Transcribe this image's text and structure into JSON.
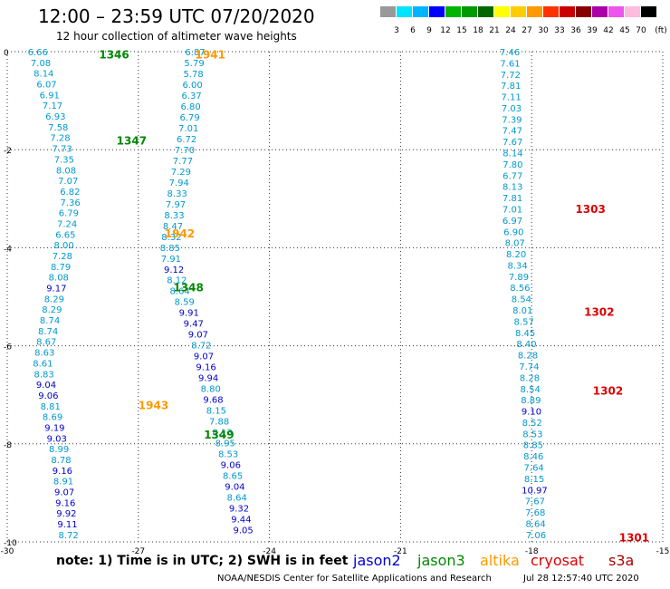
{
  "title": "12:00 – 23:59 UTC 07/20/2020",
  "subtitle": "12 hour collection of altimeter wave heights",
  "note": "note:  1) Time is in UTC;  2) SWH is in feet",
  "credit": "NOAA/NESDIS Center for Satellite Applications and Research",
  "generated": "Jul 28 12:57:40 UTC 2020",
  "colors": {
    "jason2": "#0000cc",
    "jason3": "#008800",
    "altika": "#ff9900",
    "cryosat": "#dd0000",
    "s3a": "#aa0000"
  },
  "colorbar": {
    "unit": "(ft)",
    "labels": [
      "3",
      "6",
      "9",
      "12",
      "15",
      "18",
      "21",
      "24",
      "27",
      "30",
      "33",
      "36",
      "39",
      "42",
      "45",
      "70"
    ],
    "colors": [
      "#999999",
      "#00e5ff",
      "#00b4ff",
      "#0000ff",
      "#00b400",
      "#009900",
      "#006600",
      "#ffff00",
      "#ffcc00",
      "#ff9900",
      "#ff3300",
      "#cc0000",
      "#880000",
      "#aa00aa",
      "#ee55ee",
      "#ffbbdd",
      "#000000"
    ]
  },
  "chart_data": {
    "type": "scatter",
    "xlim": [
      -30,
      -15
    ],
    "ylim": [
      -10,
      0
    ],
    "xticks": [
      "-30",
      "-27",
      "-24",
      "-21",
      "-18",
      "-15"
    ],
    "yticks": [
      "0",
      "-2",
      "-4",
      "-6",
      "-8",
      "-10"
    ],
    "legend": [
      "jason2",
      "jason3",
      "altika",
      "cryosat",
      "s3a"
    ],
    "pass_labels": [
      {
        "sat": "jason3",
        "label": "1346",
        "x": -27.9,
        "y": -0.05
      },
      {
        "sat": "altika",
        "label": "1941",
        "x": -25.7,
        "y": -0.05
      },
      {
        "sat": "jason3",
        "label": "1347",
        "x": -27.5,
        "y": -1.8
      },
      {
        "sat": "altika",
        "label": "1942",
        "x": -26.4,
        "y": -3.7
      },
      {
        "sat": "jason3",
        "label": "1348",
        "x": -26.2,
        "y": -4.8
      },
      {
        "sat": "altika",
        "label": "1943",
        "x": -27.0,
        "y": -7.2
      },
      {
        "sat": "jason3",
        "label": "1349",
        "x": -25.5,
        "y": -7.8
      },
      {
        "sat": "cryosat",
        "label": "1303",
        "x": -17.0,
        "y": -3.2
      },
      {
        "sat": "cryosat",
        "label": "1302",
        "x": -16.8,
        "y": -5.3
      },
      {
        "sat": "cryosat",
        "label": "1302",
        "x": -16.6,
        "y": -6.9
      },
      {
        "sat": "cryosat",
        "label": "1301",
        "x": -16.0,
        "y": -9.9
      }
    ],
    "tracks": [
      {
        "name": "track-left",
        "x0": -29.3,
        "y0": 0.0,
        "x1": -28.6,
        "y1": -9.85,
        "wobble": [
          [
            0,
            0
          ],
          [
            0.15,
            0.35
          ],
          [
            0.3,
            0.55
          ],
          [
            0.45,
            0.2
          ],
          [
            0.55,
            -0.1
          ],
          [
            0.65,
            -0.35
          ],
          [
            0.75,
            -0.2
          ],
          [
            0.85,
            -0.05
          ],
          [
            1,
            0
          ]
        ],
        "values": [
          "6.66",
          "7.08",
          "8.14",
          "6.07",
          "6.91",
          "7.17",
          "6.93",
          "7.58",
          "7.28",
          "7.73",
          "7.35",
          "8.08",
          "7.07",
          "6.82",
          "7.36",
          "6.79",
          "7.24",
          "6.65",
          "8.00",
          "7.28",
          "8.79",
          "8.08",
          "9.17",
          "8.29",
          "8.29",
          "8.74",
          "8.74",
          "8.67",
          "8.63",
          "8.61",
          "8.83",
          "9.04",
          "9.06",
          "8.81",
          "8.69",
          "9.19",
          "9.03",
          "8.99",
          "8.78",
          "9.16",
          "8.91",
          "9.07",
          "9.16",
          "9.92",
          "9.11",
          "8.72"
        ]
      },
      {
        "name": "track-middle",
        "x0": -25.7,
        "y0": 0.0,
        "x1": -24.6,
        "y1": -9.75,
        "wobble": [
          [
            0,
            0
          ],
          [
            0.15,
            -0.3
          ],
          [
            0.3,
            -0.75
          ],
          [
            0.42,
            -1.05
          ],
          [
            0.5,
            -0.9
          ],
          [
            0.6,
            -0.55
          ],
          [
            0.72,
            -0.4
          ],
          [
            0.85,
            -0.15
          ],
          [
            1,
            0
          ]
        ],
        "values": [
          "6.87",
          "5.79",
          "5.78",
          "6.00",
          "6.37",
          "6.80",
          "6.79",
          "7.01",
          "6.72",
          "7.70",
          "7.77",
          "7.29",
          "7.94",
          "8.33",
          "7.97",
          "8.33",
          "8.47",
          "8.32",
          "8.85",
          "7.91",
          "9.12",
          "8.12",
          "8.64",
          "8.59",
          "9.91",
          "9.47",
          "9.07",
          "8.72",
          "9.07",
          "9.16",
          "9.94",
          "8.80",
          "9.68",
          "8.15",
          "7.88",
          "8.13",
          "8.95",
          "8.53",
          "9.06",
          "8.65",
          "9.04",
          "8.64",
          "9.32",
          "9.44",
          "9.05"
        ]
      },
      {
        "name": "track-right",
        "x0": -18.5,
        "y0": 0.0,
        "x1": -17.9,
        "y1": -9.85,
        "wobble": [
          [
            0,
            0
          ],
          [
            0.2,
            -0.05
          ],
          [
            0.35,
            -0.15
          ],
          [
            0.5,
            -0.05
          ],
          [
            0.65,
            0.05
          ],
          [
            0.8,
            0.05
          ],
          [
            1,
            0
          ]
        ],
        "values": [
          "7.46",
          "7.61",
          "7.72",
          "7.81",
          "7.11",
          "7.03",
          "7.39",
          "7.47",
          "7.67",
          "8.14",
          "7.80",
          "6.77",
          "8.13",
          "7.81",
          "7.01",
          "6.97",
          "6.90",
          "8.07",
          "8.20",
          "8.34",
          "7.89",
          "8.56",
          "8.54",
          "8.01",
          "8.57",
          "8.45",
          "8.40",
          "8.28",
          "7.74",
          "8.28",
          "8.54",
          "8.89",
          "9.10",
          "8.52",
          "8.53",
          "8.85",
          "8.46",
          "7.64",
          "8.15",
          "10.97",
          "7.67",
          "7.68",
          "8.64",
          "7.06"
        ]
      }
    ]
  }
}
